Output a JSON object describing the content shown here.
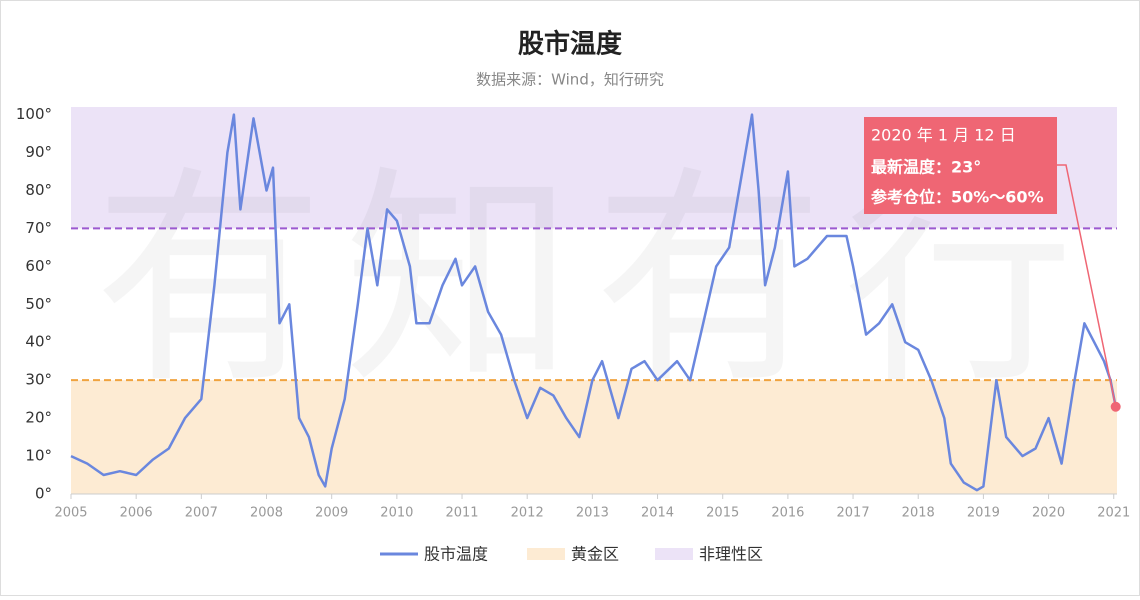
{
  "chart_data": {
    "type": "line",
    "title": "股市温度",
    "subtitle": "数据来源：Wind，知行研究",
    "watermark": "有知有行",
    "x": [
      2005.0,
      2005.25,
      2005.5,
      2005.75,
      2006.0,
      2006.25,
      2006.5,
      2006.75,
      2007.0,
      2007.2,
      2007.4,
      2007.5,
      2007.6,
      2007.8,
      2008.0,
      2008.1,
      2008.2,
      2008.35,
      2008.5,
      2008.65,
      2008.8,
      2008.9,
      2009.0,
      2009.2,
      2009.4,
      2009.55,
      2009.7,
      2009.85,
      2010.0,
      2010.2,
      2010.3,
      2010.5,
      2010.7,
      2010.9,
      2011.0,
      2011.2,
      2011.4,
      2011.6,
      2011.8,
      2012.0,
      2012.2,
      2012.4,
      2012.6,
      2012.8,
      2013.0,
      2013.15,
      2013.4,
      2013.6,
      2013.8,
      2014.0,
      2014.3,
      2014.5,
      2014.7,
      2014.9,
      2015.1,
      2015.3,
      2015.45,
      2015.55,
      2015.65,
      2015.8,
      2016.0,
      2016.1,
      2016.3,
      2016.6,
      2016.9,
      2017.0,
      2017.2,
      2017.4,
      2017.6,
      2017.8,
      2018.0,
      2018.2,
      2018.4,
      2018.5,
      2018.7,
      2018.9,
      2019.0,
      2019.2,
      2019.35,
      2019.6,
      2019.8,
      2020.0,
      2020.2,
      2020.4,
      2020.55,
      2020.7,
      2020.85,
      2020.95,
      2021.03
    ],
    "series": [
      {
        "name": "股市温度",
        "color": "#6a87de",
        "values": [
          10,
          8,
          5,
          6,
          5,
          9,
          12,
          20,
          25,
          55,
          90,
          100,
          75,
          99,
          80,
          86,
          45,
          50,
          20,
          15,
          5,
          2,
          12,
          25,
          50,
          70,
          55,
          75,
          72,
          60,
          45,
          45,
          55,
          62,
          55,
          60,
          48,
          42,
          30,
          20,
          28,
          26,
          20,
          15,
          30,
          35,
          20,
          33,
          35,
          30,
          35,
          30,
          45,
          60,
          65,
          85,
          100,
          80,
          55,
          65,
          85,
          60,
          62,
          68,
          68,
          60,
          42,
          45,
          50,
          40,
          38,
          30,
          20,
          8,
          3,
          1,
          2,
          30,
          15,
          10,
          12,
          20,
          8,
          30,
          45,
          40,
          35,
          30,
          23
        ]
      }
    ],
    "zones": [
      {
        "name": "黄金区",
        "range": [
          0,
          30
        ],
        "color": "#fdebd3",
        "line_color": "#f0a33f"
      },
      {
        "name": "非理性区",
        "range": [
          70,
          102
        ],
        "color": "#ece3f7",
        "line_color": "#9b59d0"
      }
    ],
    "annotation": {
      "date": "2020 年 1 月 12 日",
      "lines": [
        "最新温度：23°",
        "参考仓位：50%～60%"
      ],
      "color": "#ef6674"
    },
    "xlim": [
      2005,
      2021.05
    ],
    "xticks": [
      2005,
      2006,
      2007,
      2008,
      2009,
      2010,
      2011,
      2012,
      2013,
      2014,
      2015,
      2016,
      2017,
      2018,
      2019,
      2020,
      2021
    ],
    "ylim": [
      0,
      102
    ],
    "yticks": [
      {
        "value": 0,
        "label": "0°"
      },
      {
        "value": 10,
        "label": "10°"
      },
      {
        "value": 20,
        "label": "20°"
      },
      {
        "value": 30,
        "label": "30°"
      },
      {
        "value": 40,
        "label": "40°"
      },
      {
        "value": 50,
        "label": "50°"
      },
      {
        "value": 60,
        "label": "60°"
      },
      {
        "value": 70,
        "label": "70°"
      },
      {
        "value": 80,
        "label": "80°"
      },
      {
        "value": 90,
        "label": "90°"
      },
      {
        "value": 100,
        "label": "100°"
      }
    ]
  }
}
